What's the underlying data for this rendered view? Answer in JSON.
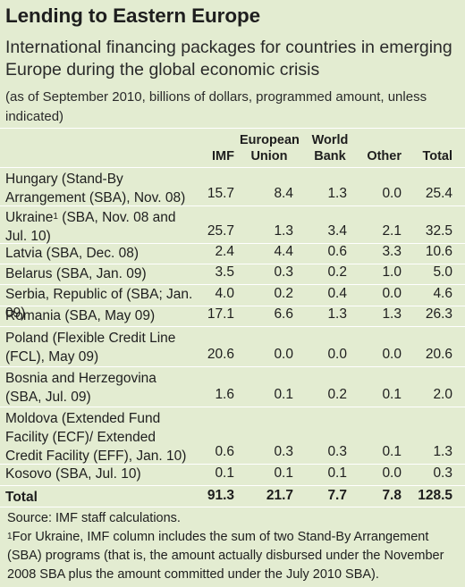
{
  "title": "Lending to Eastern Europe",
  "subtitle": "International financing packages for countries in emerging Europe during the global economic crisis",
  "note": "(as of September 2010, billions of dollars, programmed amount, unless indicated)",
  "columns": {
    "imf": "IMF",
    "eu": "European Union",
    "wb": "World Bank",
    "other": "Other",
    "total": "Total"
  },
  "rows": [
    {
      "label": "Hungary (Stand-By Arrangement (SBA), Nov. 08)",
      "imf": "15.7",
      "eu": "8.4",
      "wb": "1.3",
      "other": "0.0",
      "total": "25.4"
    },
    {
      "label_pre": "Ukraine",
      "label_sup": "1",
      "label_post": " (SBA, Nov. 08 and Jul. 10)",
      "imf": "25.7",
      "eu": "1.3",
      "wb": "3.4",
      "other": "2.1",
      "total": "32.5"
    },
    {
      "label": "Latvia (SBA, Dec. 08)",
      "imf": "2.4",
      "eu": "4.4",
      "wb": "0.6",
      "other": "3.3",
      "total": "10.6"
    },
    {
      "label": "Belarus (SBA, Jan. 09)",
      "imf": "3.5",
      "eu": "0.3",
      "wb": "0.2",
      "other": "1.0",
      "total": "5.0"
    },
    {
      "label": "Serbia, Republic of (SBA; Jan. 09)",
      "imf": "4.0",
      "eu": "0.2",
      "wb": "0.4",
      "other": "0.0",
      "total": "4.6"
    },
    {
      "label": "Romania (SBA, May 09)",
      "imf": "17.1",
      "eu": "6.6",
      "wb": "1.3",
      "other": "1.3",
      "total": "26.3"
    },
    {
      "label": "Poland (Flexible Credit Line (FCL), May 09)",
      "imf": "20.6",
      "eu": "0.0",
      "wb": "0.0",
      "other": "0.0",
      "total": "20.6"
    },
    {
      "label": "Bosnia and Herzegovina (SBA, Jul. 09)",
      "imf": "1.6",
      "eu": "0.1",
      "wb": "0.2",
      "other": "0.1",
      "total": "2.0"
    },
    {
      "label": "Moldova (Extended Fund Facility (ECF)/ Extended Credit Facility (EFF), Jan. 10)",
      "imf": "0.6",
      "eu": "0.3",
      "wb": "0.3",
      "other": "0.1",
      "total": "1.3"
    },
    {
      "label": "Kosovo (SBA, Jul. 10)",
      "imf": "0.1",
      "eu": "0.1",
      "wb": "0.1",
      "other": "0.0",
      "total": "0.3"
    }
  ],
  "total_row": {
    "label": "Total",
    "imf": "91.3",
    "eu": "21.7",
    "wb": "7.7",
    "other": "7.8",
    "total": "128.5"
  },
  "source": "Source: IMF staff calculations.",
  "footnote_mark": "1",
  "footnote": "For Ukraine, IMF column includes the sum of two Stand-By Arrangement (SBA) programs (that is, the amount actually disbursed under the November 2008 SBA plus the amount committed under the July 2010 SBA).",
  "colors": {
    "background": "#e3ecd1",
    "rule": "#ffffff",
    "text": "#1e1e1e"
  }
}
